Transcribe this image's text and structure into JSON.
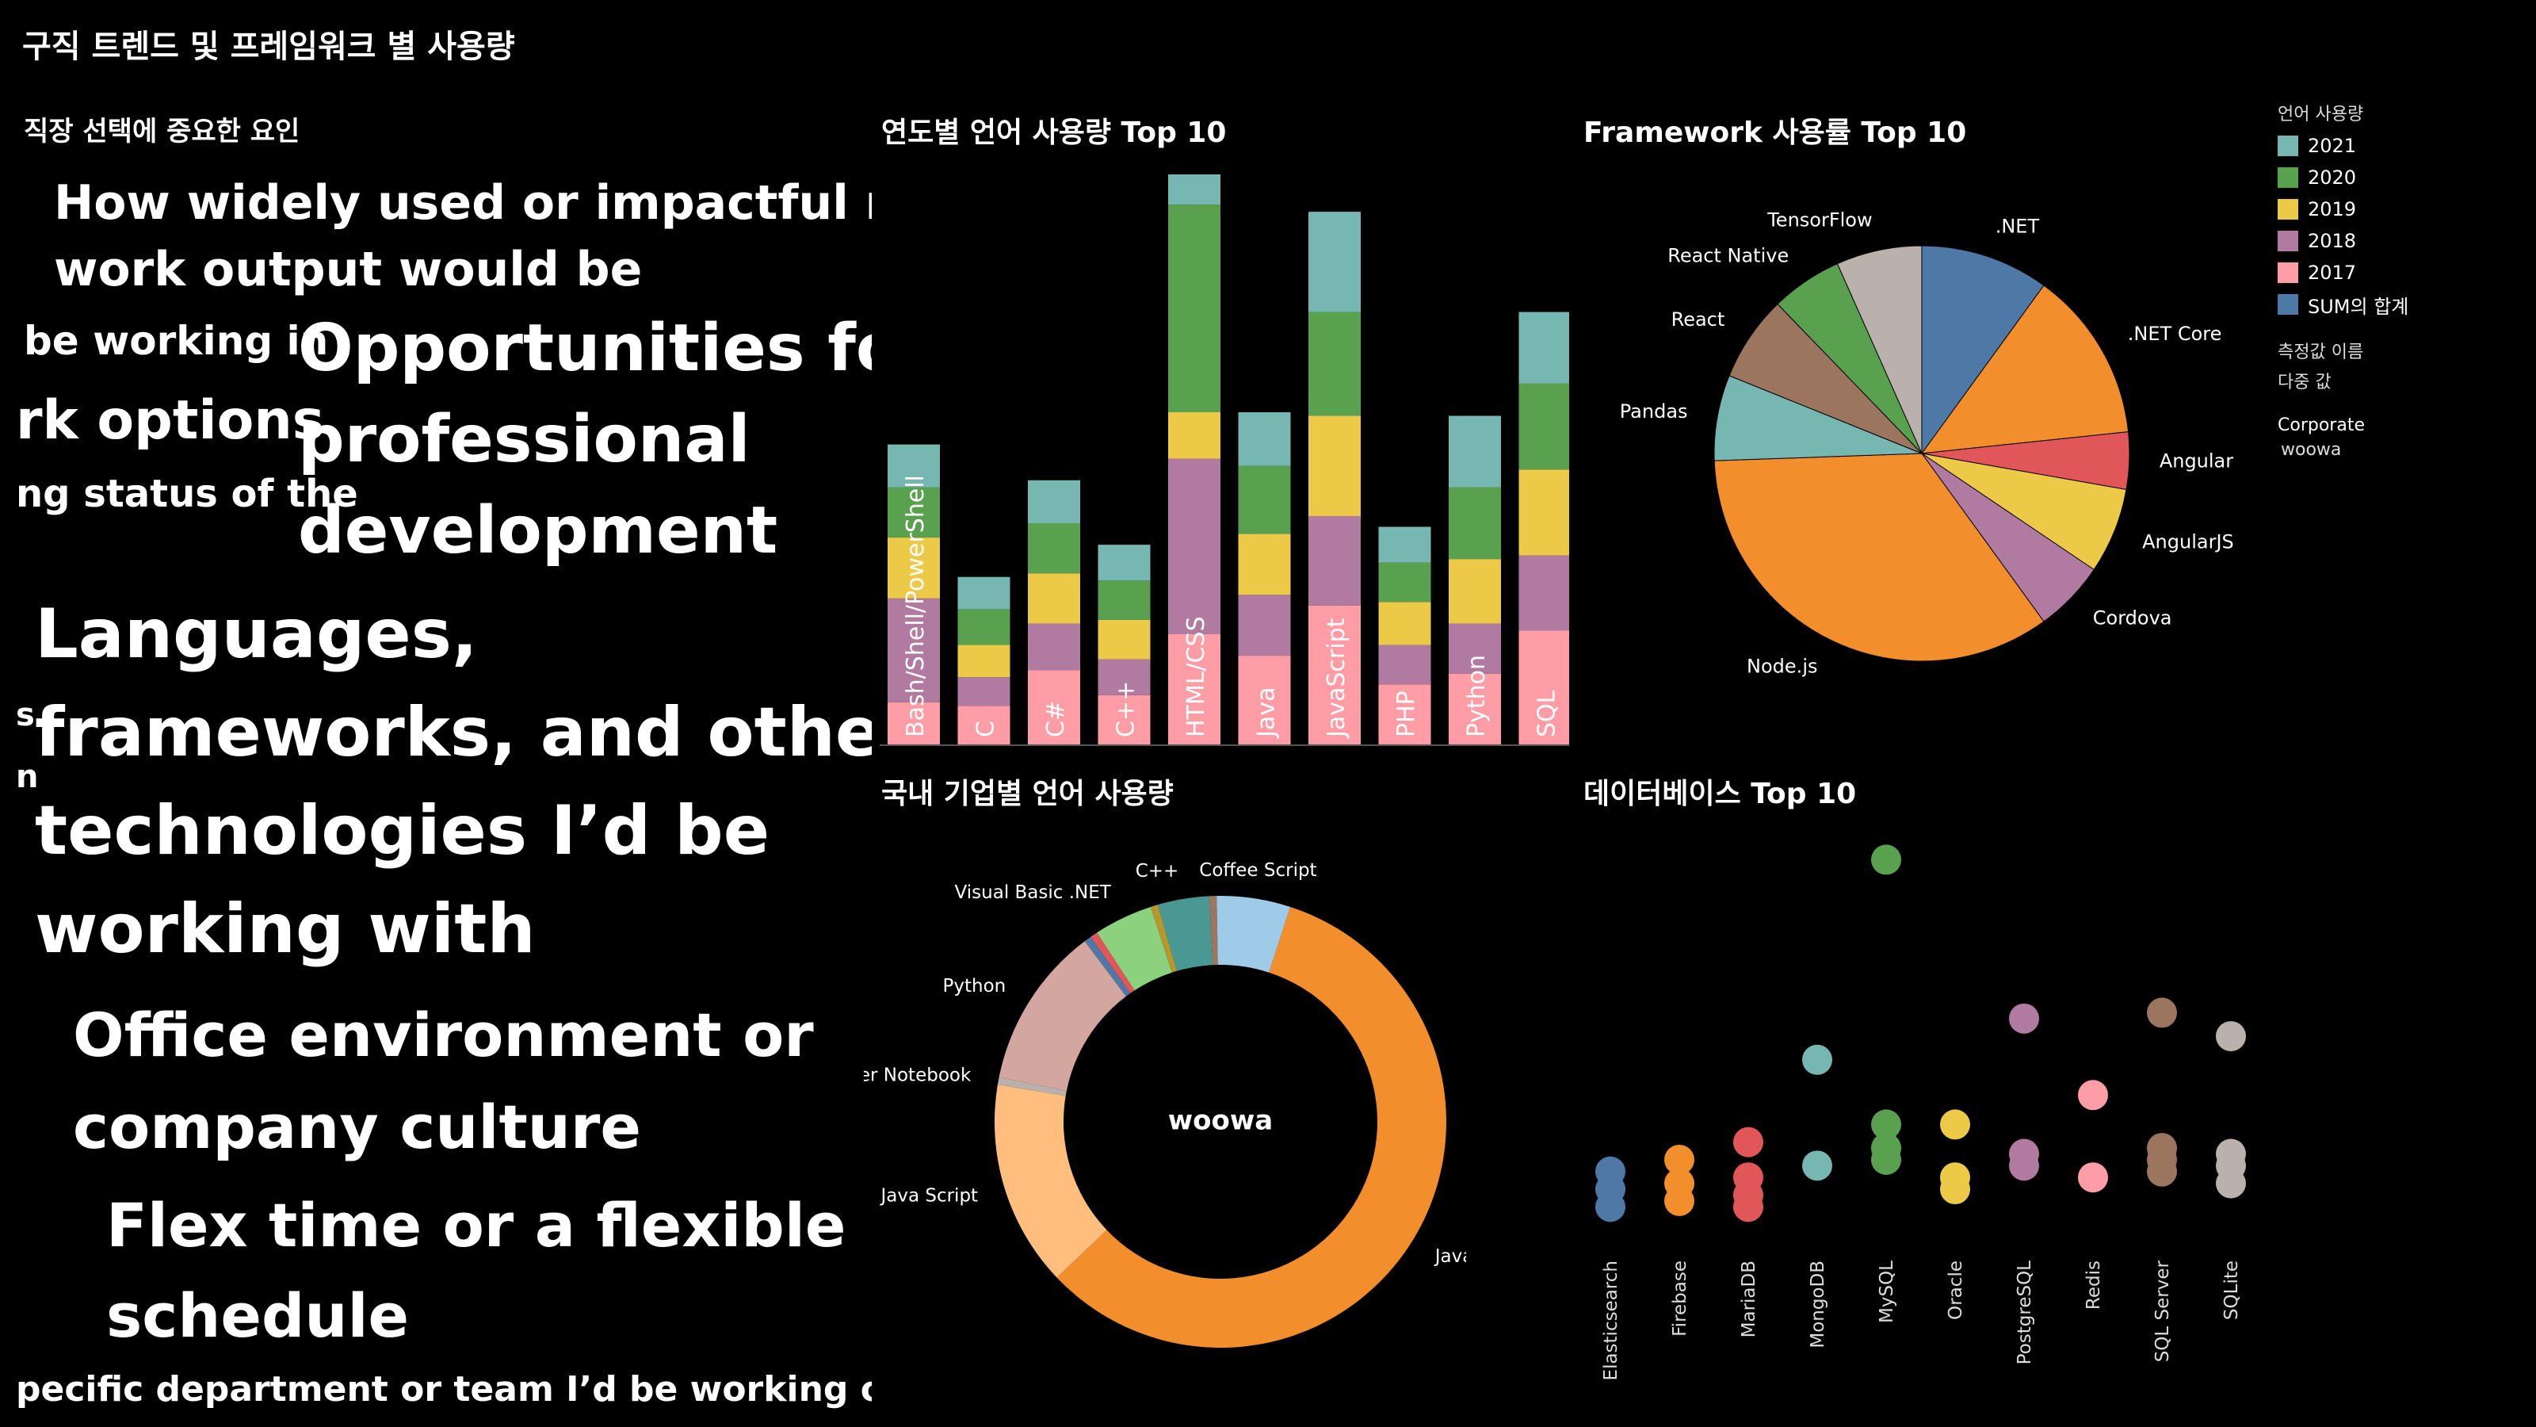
{
  "page_title": "구직 트렌드 및 프레임워크 별 사용량",
  "word_cloud": {
    "title": "직장 선택에 중요한 요인",
    "words": [
      {
        "text": "How widely used or impactful my",
        "color": "#8bb15a"
      },
      {
        "text": "work output would be",
        "color": "#8bb15a"
      },
      {
        "text": "be working in",
        "color": "#6e9f70"
      },
      {
        "text": "Opportunities for",
        "color": "#f0b24a"
      },
      {
        "text": "rk options",
        "color": "#e7b23d"
      },
      {
        "text": "professional",
        "color": "#f0b24a"
      },
      {
        "text": "ng status of the",
        "color": "#6e9f70"
      },
      {
        "text": "development",
        "color": "#f0b24a"
      },
      {
        "text": "Languages,",
        "color": "#d36f4b"
      },
      {
        "text": "s",
        "color": "#6e9f70"
      },
      {
        "text": "frameworks, and other",
        "color": "#d36f4b"
      },
      {
        "text": "n",
        "color": "#6e9f70"
      },
      {
        "text": "technologies I’d be",
        "color": "#d36f4b"
      },
      {
        "text": "working with",
        "color": "#d36f4b"
      },
      {
        "text": "Office environment or",
        "color": "#e89a4f"
      },
      {
        "text": "company culture",
        "color": "#e89a4f"
      },
      {
        "text": "Flex time or a flexible",
        "color": "#eea445"
      },
      {
        "text": "schedule",
        "color": "#eea445"
      },
      {
        "text": "pecific department or team I’d be working on",
        "color": "#6e9f70"
      }
    ]
  },
  "legend": {
    "title": "언어 사용량",
    "items": [
      {
        "label": "2021",
        "color": "#76b7b2"
      },
      {
        "label": "2020",
        "color": "#59a14f"
      },
      {
        "label": "2019",
        "color": "#edc948"
      },
      {
        "label": "2018",
        "color": "#b07aa1"
      },
      {
        "label": "2017",
        "color": "#ff9da7"
      },
      {
        "label": "SUM의 합계",
        "color": "#4e79a7"
      }
    ],
    "measure_title": "측정값 이름",
    "measure_value": "다중 값",
    "corporate_title": "Corporate",
    "corporate_value": "woowa"
  },
  "chart_data": [
    {
      "type": "bar",
      "title": "연도별 언어 사용량 Top 10",
      "stacked": true,
      "categories": [
        "Bash/Shell/PowerShell",
        "C",
        "C#",
        "C++",
        "HTML/CSS",
        "Java",
        "JavaScript",
        "PHP",
        "Python",
        "SQL"
      ],
      "series": [
        {
          "name": "2017",
          "color": "#ff9da7",
          "values": [
            12,
            11,
            21,
            14,
            31,
            25,
            39,
            17,
            20,
            32
          ]
        },
        {
          "name": "2018",
          "color": "#b07aa1",
          "values": [
            29,
            8,
            13,
            10,
            49,
            17,
            25,
            11,
            14,
            21
          ]
        },
        {
          "name": "2019",
          "color": "#edc948",
          "values": [
            17,
            9,
            14,
            11,
            13,
            17,
            28,
            12,
            18,
            24
          ]
        },
        {
          "name": "2020",
          "color": "#59a14f",
          "values": [
            14,
            10,
            14,
            11,
            58,
            19,
            29,
            11,
            20,
            24
          ]
        },
        {
          "name": "2021",
          "color": "#76b7b2",
          "values": [
            12,
            9,
            12,
            10,
            24,
            15,
            28,
            10,
            20,
            20
          ]
        }
      ],
      "label_color": "#ffffff"
    },
    {
      "type": "pie",
      "title": "Framework 사용률 Top 10",
      "slices": [
        {
          "label": ".NET",
          "value": 9,
          "color": "#4e79a7"
        },
        {
          "label": ".NET Core",
          "value": 12,
          "color": "#f28e2b"
        },
        {
          "label": "Angular",
          "value": 4,
          "color": "#e15759"
        },
        {
          "label": "AngularJS",
          "value": 6,
          "color": "#edc948"
        },
        {
          "label": "Cordova",
          "value": 5,
          "color": "#b07aa1"
        },
        {
          "label": "Node.js",
          "value": 31,
          "color": "#f28e2b"
        },
        {
          "label": "Pandas",
          "value": 6,
          "color": "#76b7b2"
        },
        {
          "label": "React",
          "value": 6,
          "color": "#9c755f"
        },
        {
          "label": "React Native",
          "value": 5,
          "color": "#59a14f"
        },
        {
          "label": "TensorFlow",
          "value": 6,
          "color": "#bab0ac"
        }
      ]
    },
    {
      "type": "pie",
      "title": "국내 기업별 언어 사용량",
      "center_label": "woowa",
      "donut": true,
      "slices": [
        {
          "label": "Java",
          "value": 55,
          "color": "#f28e2b"
        },
        {
          "label": "Java Script",
          "value": 14,
          "color": "#ffbe7d"
        },
        {
          "label": "Jupyter Notebook",
          "value": 0.5,
          "color": "#bab0ac"
        },
        {
          "label": "Python",
          "value": 11,
          "color": "#d4a6a0"
        },
        {
          "label": "",
          "value": 0.5,
          "color": "#4e79a7"
        },
        {
          "label": "",
          "value": 0.5,
          "color": "#e15759"
        },
        {
          "label": "Visual Basic .NET",
          "value": 4,
          "color": "#8cd17d"
        },
        {
          "label": "",
          "value": 0.5,
          "color": "#b6992d"
        },
        {
          "label": "C++",
          "value": 3.5,
          "color": "#499894"
        },
        {
          "label": "",
          "value": 0.5,
          "color": "#9d7660"
        },
        {
          "label": "Coffee Script",
          "value": 5,
          "color": "#a0cbe8"
        }
      ]
    },
    {
      "type": "scatter",
      "title": "데이터베이스 Top 10",
      "categories": [
        "Elasticsearch",
        "Firebase",
        "MariaDB",
        "MongoDB",
        "MySQL",
        "Oracle",
        "PostgreSQL",
        "Redis",
        "SQL Server",
        "SQLite"
      ],
      "ylim": [
        0,
        32
      ],
      "series": [
        {
          "name": "2017",
          "color": "#ff9da7",
          "values": [
            null,
            null,
            null,
            null,
            null,
            null,
            null,
            5,
            null,
            null
          ]
        },
        {
          "name": "2018",
          "color": "#b07aa1",
          "values": [
            null,
            null,
            null,
            null,
            null,
            null,
            18,
            null,
            null,
            null
          ]
        },
        {
          "name": "SUM의 합계",
          "color": "#4e79a7",
          "values": [
            7,
            null,
            null,
            null,
            null,
            null,
            null,
            null,
            null,
            null
          ]
        }
      ],
      "points": [
        {
          "cat": "Elasticsearch",
          "y": 5,
          "color": "#4e79a7"
        },
        {
          "cat": "Elasticsearch",
          "y": 3.5,
          "color": "#4e79a7"
        },
        {
          "cat": "Elasticsearch",
          "y": 2,
          "color": "#4e79a7"
        },
        {
          "cat": "Firebase",
          "y": 6,
          "color": "#f28e2b"
        },
        {
          "cat": "Firebase",
          "y": 4,
          "color": "#f28e2b"
        },
        {
          "cat": "Firebase",
          "y": 2.5,
          "color": "#f28e2b"
        },
        {
          "cat": "MariaDB",
          "y": 7.5,
          "color": "#e15759"
        },
        {
          "cat": "MariaDB",
          "y": 4.5,
          "color": "#e15759"
        },
        {
          "cat": "MariaDB",
          "y": 3,
          "color": "#e15759"
        },
        {
          "cat": "MariaDB",
          "y": 2,
          "color": "#e15759"
        },
        {
          "cat": "MongoDB",
          "y": 14.5,
          "color": "#76b7b2"
        },
        {
          "cat": "MongoDB",
          "y": 5.5,
          "color": "#76b7b2"
        },
        {
          "cat": "MySQL",
          "y": 31.5,
          "color": "#59a14f"
        },
        {
          "cat": "MySQL",
          "y": 9,
          "color": "#59a14f"
        },
        {
          "cat": "MySQL",
          "y": 7,
          "color": "#59a14f"
        },
        {
          "cat": "MySQL",
          "y": 6,
          "color": "#59a14f"
        },
        {
          "cat": "Oracle",
          "y": 9,
          "color": "#edc948"
        },
        {
          "cat": "Oracle",
          "y": 4.5,
          "color": "#edc948"
        },
        {
          "cat": "Oracle",
          "y": 3.5,
          "color": "#edc948"
        },
        {
          "cat": "PostgreSQL",
          "y": 18,
          "color": "#b07aa1"
        },
        {
          "cat": "PostgreSQL",
          "y": 6.5,
          "color": "#b07aa1"
        },
        {
          "cat": "PostgreSQL",
          "y": 5.5,
          "color": "#b07aa1"
        },
        {
          "cat": "Redis",
          "y": 11.5,
          "color": "#ff9da7"
        },
        {
          "cat": "Redis",
          "y": 4.5,
          "color": "#ff9da7"
        },
        {
          "cat": "SQL Server",
          "y": 18.5,
          "color": "#9c755f"
        },
        {
          "cat": "SQL Server",
          "y": 7,
          "color": "#9c755f"
        },
        {
          "cat": "SQL Server",
          "y": 6,
          "color": "#9c755f"
        },
        {
          "cat": "SQL Server",
          "y": 5,
          "color": "#9c755f"
        },
        {
          "cat": "SQLite",
          "y": 16.5,
          "color": "#bab0ac"
        },
        {
          "cat": "SQLite",
          "y": 6.5,
          "color": "#bab0ac"
        },
        {
          "cat": "SQLite",
          "y": 5.5,
          "color": "#bab0ac"
        },
        {
          "cat": "SQLite",
          "y": 4,
          "color": "#bab0ac"
        }
      ]
    }
  ]
}
